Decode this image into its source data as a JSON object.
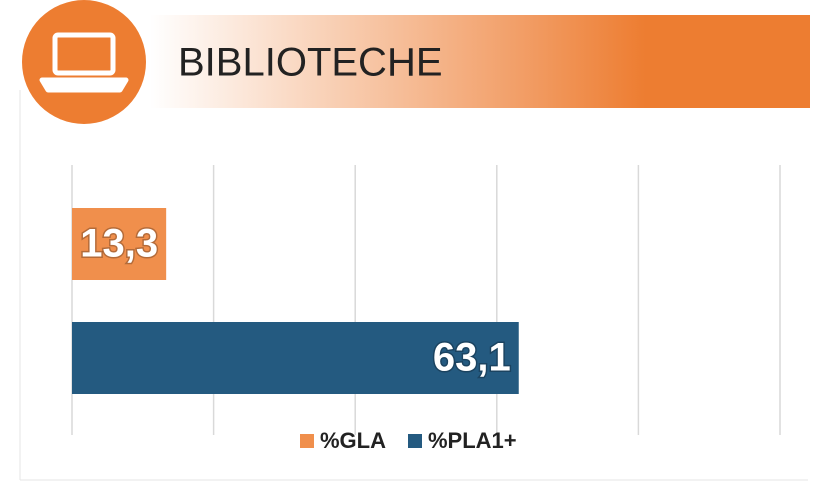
{
  "chart_data": {
    "type": "barh",
    "title": "BIBLIOTECHE",
    "categories": [
      null
    ],
    "series": [
      {
        "name": "%GLA",
        "color": "#F08F4C",
        "values": [
          13.3
        ],
        "value_labels": [
          "13,3"
        ]
      },
      {
        "name": "%PLA1+",
        "color": "#245A80",
        "values": [
          63.1
        ],
        "value_labels": [
          "63,1"
        ]
      }
    ],
    "xlim": [
      0,
      100
    ],
    "xticks": [
      0,
      20,
      40,
      60,
      80,
      100
    ],
    "grid": true,
    "legend": "bottom"
  }
}
